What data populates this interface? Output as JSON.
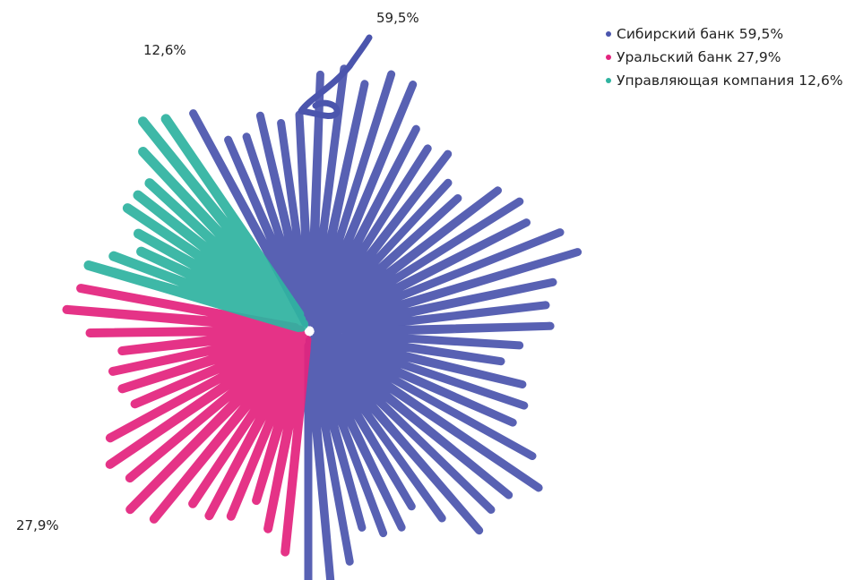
{
  "chart_data": {
    "type": "pie",
    "title": "",
    "categories": [
      "Сибирский банк",
      "Уральский банк",
      "Управляющая компания"
    ],
    "values": [
      59.5,
      27.9,
      12.6
    ],
    "units": "%",
    "data_labels": [
      "59,5%",
      "27,9%",
      "12,6%"
    ],
    "colors": [
      "#4b55ad",
      "#e3237e",
      "#2fb3a0"
    ],
    "legend": {
      "placement": "top-right",
      "entries": [
        "Сибирский банк 59,5%",
        "Уральский банк 27,9%",
        "Управляющая компания 12,6%"
      ]
    },
    "style": "hand-drawn scribble marker fill"
  }
}
